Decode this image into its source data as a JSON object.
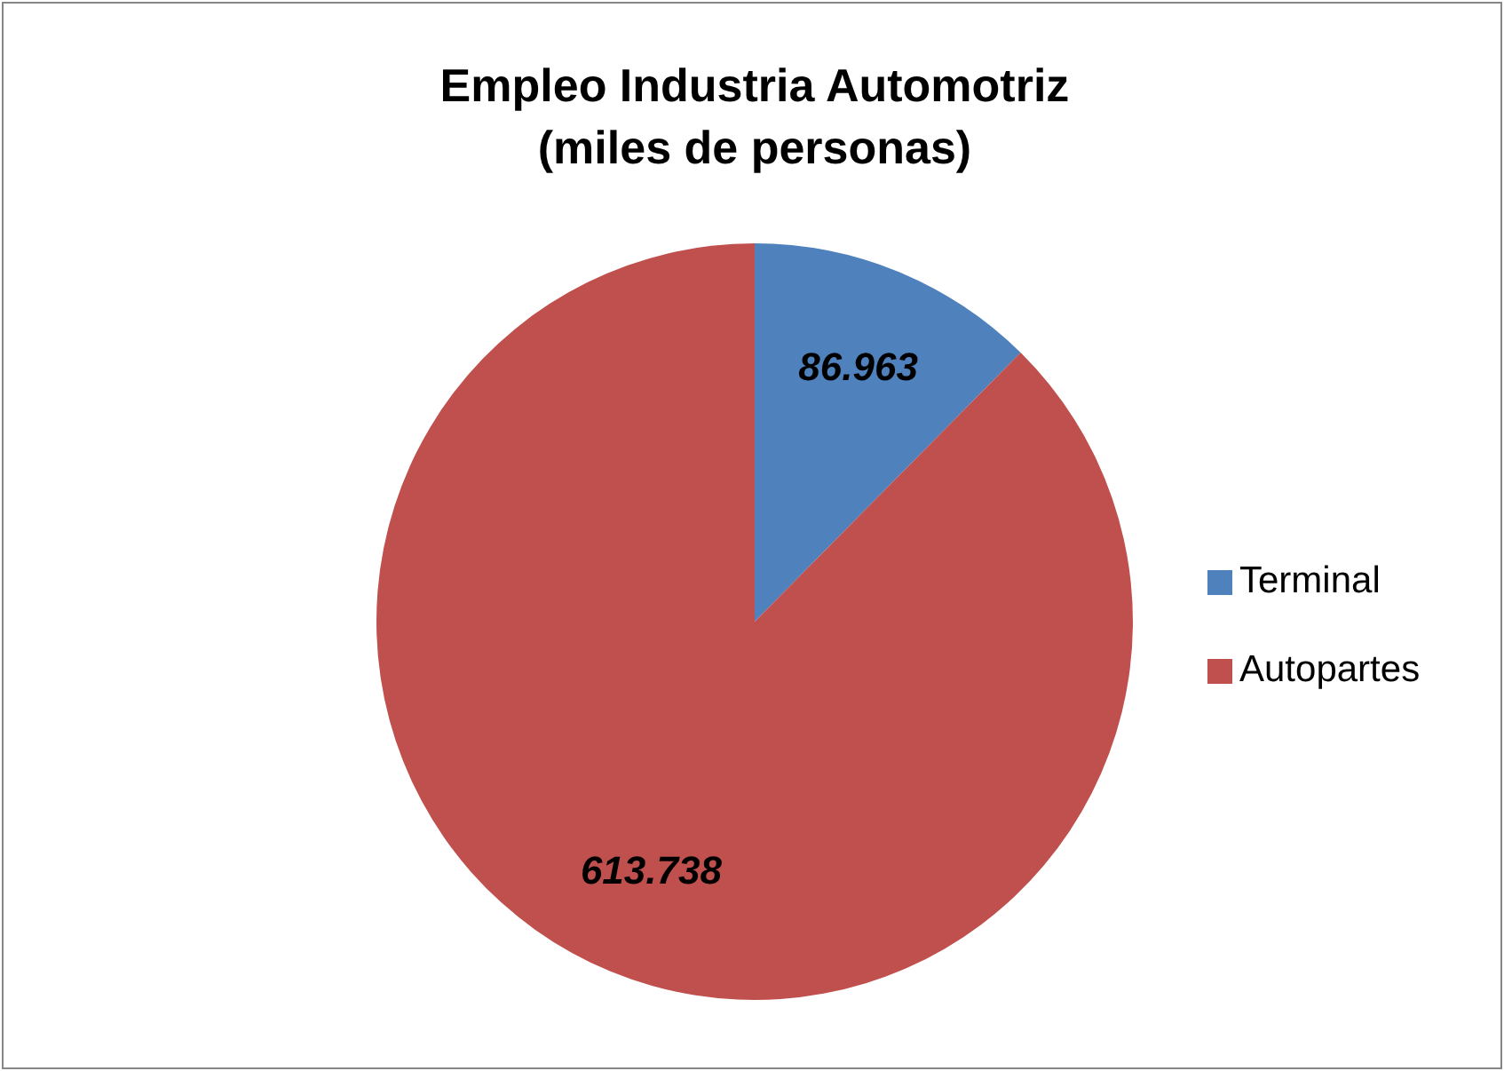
{
  "chart_data": {
    "type": "pie",
    "title": "Empleo Industria Automotriz\n(miles de personas)",
    "categories": [
      "Terminal",
      "Autopartes"
    ],
    "values": [
      86.963,
      613.738
    ],
    "colors": [
      "#4f81bd",
      "#c0504d"
    ],
    "data_labels": true,
    "legend": "right"
  }
}
